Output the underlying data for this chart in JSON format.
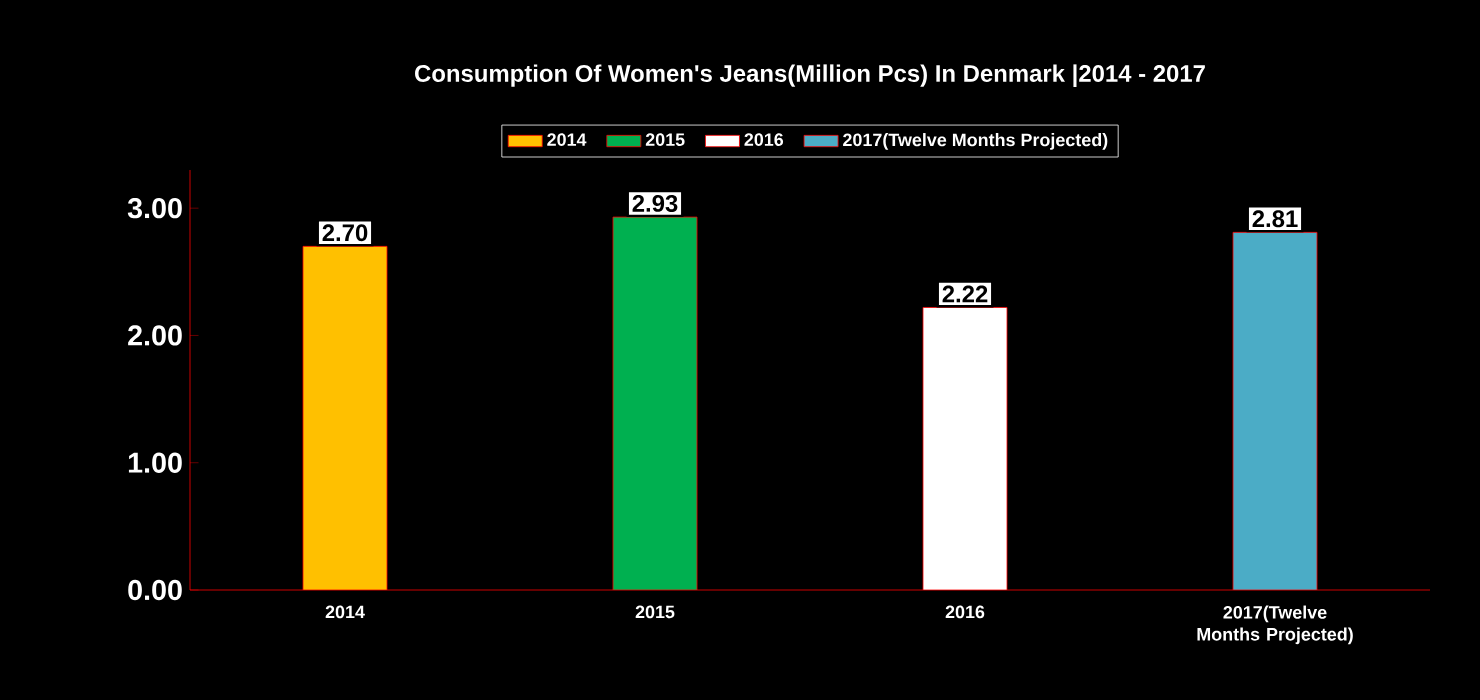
{
  "chart_data": {
    "type": "bar",
    "title": "Consumption Of Women's Jeans(Million Pcs) In Denmark |2014 - 2017",
    "categories": [
      "2014",
      "2015",
      "2016",
      "2017(Twelve Months Projected)"
    ],
    "series": [
      {
        "name": "2014",
        "color": "#ffc000",
        "values": [
          2.7,
          null,
          null,
          null
        ],
        "value_labels": [
          "2.70",
          null,
          null,
          null
        ]
      },
      {
        "name": "2015",
        "color": "#00b050",
        "values": [
          null,
          2.93,
          null,
          null
        ],
        "value_labels": [
          null,
          "2.93",
          null,
          null
        ]
      },
      {
        "name": "2016",
        "color": "#ffffff",
        "values": [
          null,
          null,
          2.22,
          null
        ],
        "value_labels": [
          null,
          null,
          "2.22",
          null
        ]
      },
      {
        "name": "2017(Twelve Months Projected)",
        "color": "#4bacc6",
        "values": [
          null,
          null,
          null,
          2.81
        ],
        "value_labels": [
          null,
          null,
          null,
          "2.81"
        ]
      }
    ],
    "ylim": [
      0,
      3.3
    ],
    "yticks": [
      {
        "value": 0,
        "label": "0.00"
      },
      {
        "value": 1,
        "label": "1.00"
      },
      {
        "value": 2,
        "label": "2.00"
      },
      {
        "value": 3,
        "label": "3.00"
      }
    ],
    "legend": "top",
    "grid": false
  }
}
